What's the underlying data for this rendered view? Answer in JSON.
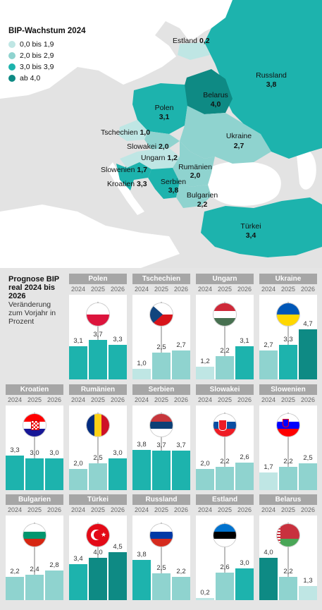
{
  "map": {
    "title": "BIP-Wachstum 2024",
    "legend": [
      {
        "label": "0,0 bis 1,9",
        "color": "#bfe6e4"
      },
      {
        "label": "2,0 bis 2,9",
        "color": "#8fd3cf"
      },
      {
        "label": "3,0 bis 3,9",
        "color": "#1db3ad"
      },
      {
        "label": "ab 4,0",
        "color": "#0e8a84"
      }
    ],
    "labels": {
      "estland": {
        "name": "Estland",
        "value": "0,2"
      },
      "russland": {
        "name": "Russland",
        "value": "3,8"
      },
      "belarus": {
        "name": "Belarus",
        "value": "4,0"
      },
      "polen": {
        "name": "Polen",
        "value": "3,1"
      },
      "tschechien": {
        "name": "Tschechien",
        "value": "1,0"
      },
      "slowakei": {
        "name": "Slowakei",
        "value": "2,0"
      },
      "ukraine": {
        "name": "Ukraine",
        "value": "2,7"
      },
      "ungarn": {
        "name": "Ungarn",
        "value": "1,2"
      },
      "rumaenien": {
        "name": "Rumänien",
        "value": "2,0"
      },
      "slowenien": {
        "name": "Slowenien",
        "value": "1,7"
      },
      "kroatien": {
        "name": "Kroatien",
        "value": "3,3"
      },
      "serbien": {
        "name": "Serbien",
        "value": "3,8"
      },
      "bulgarien": {
        "name": "Bulgarien",
        "value": "2,2"
      },
      "tuerkei": {
        "name": "Türkei",
        "value": "3,4"
      }
    }
  },
  "forecast": {
    "title": "Prognose BIP real 2024 bis 2026",
    "subtitle": "Veränderung zum Vorjahr in Prozent"
  },
  "chart_data": {
    "type": "bar",
    "categories": [
      "2024",
      "2025",
      "2026"
    ],
    "ylim": [
      0,
      5
    ],
    "series": [
      {
        "name": "Polen",
        "values": [
          3.1,
          3.7,
          3.3
        ],
        "labels": [
          "3,1",
          "3,7",
          "3,3"
        ],
        "flag": "polen"
      },
      {
        "name": "Tschechien",
        "values": [
          1.0,
          2.5,
          2.7
        ],
        "labels": [
          "1,0",
          "2,5",
          "2,7"
        ],
        "flag": "tschechien"
      },
      {
        "name": "Ungarn",
        "values": [
          1.2,
          2.2,
          3.1
        ],
        "labels": [
          "1,2",
          "2,2",
          "3,1"
        ],
        "flag": "ungarn"
      },
      {
        "name": "Ukraine",
        "values": [
          2.7,
          3.3,
          4.7
        ],
        "labels": [
          "2,7",
          "3,3",
          "4,7"
        ],
        "flag": "ukraine"
      },
      {
        "name": "Kroatien",
        "values": [
          3.3,
          3.0,
          3.0
        ],
        "labels": [
          "3,3",
          "3,0",
          "3,0"
        ],
        "flag": "kroatien"
      },
      {
        "name": "Rumänien",
        "values": [
          2.0,
          2.5,
          3.0
        ],
        "labels": [
          "2,0",
          "2,5",
          "3,0"
        ],
        "flag": "rumaenien"
      },
      {
        "name": "Serbien",
        "values": [
          3.8,
          3.7,
          3.7
        ],
        "labels": [
          "3,8",
          "3,7",
          "3,7"
        ],
        "flag": "serbien"
      },
      {
        "name": "Slowakei",
        "values": [
          2.0,
          2.2,
          2.6
        ],
        "labels": [
          "2,0",
          "2,2",
          "2,6"
        ],
        "flag": "slowakei"
      },
      {
        "name": "Slowenien",
        "values": [
          1.7,
          2.2,
          2.5
        ],
        "labels": [
          "1,7",
          "2,2",
          "2,5"
        ],
        "flag": "slowenien"
      },
      {
        "name": "Bulgarien",
        "values": [
          2.2,
          2.4,
          2.8
        ],
        "labels": [
          "2,2",
          "2,4",
          "2,8"
        ],
        "flag": "bulgarien"
      },
      {
        "name": "Türkei",
        "values": [
          3.4,
          4.0,
          4.5
        ],
        "labels": [
          "3,4",
          "4,0",
          "4,5"
        ],
        "flag": "tuerkei"
      },
      {
        "name": "Russland",
        "values": [
          3.8,
          2.5,
          2.2
        ],
        "labels": [
          "3,8",
          "2,5",
          "2,2"
        ],
        "flag": "russland"
      },
      {
        "name": "Estland",
        "values": [
          0.2,
          2.6,
          3.0
        ],
        "labels": [
          "0,2",
          "2,6",
          "3,0"
        ],
        "flag": "estland"
      },
      {
        "name": "Belarus",
        "values": [
          4.0,
          2.2,
          1.3
        ],
        "labels": [
          "4,0",
          "2,2",
          "1,3"
        ],
        "flag": "belarus"
      }
    ]
  }
}
